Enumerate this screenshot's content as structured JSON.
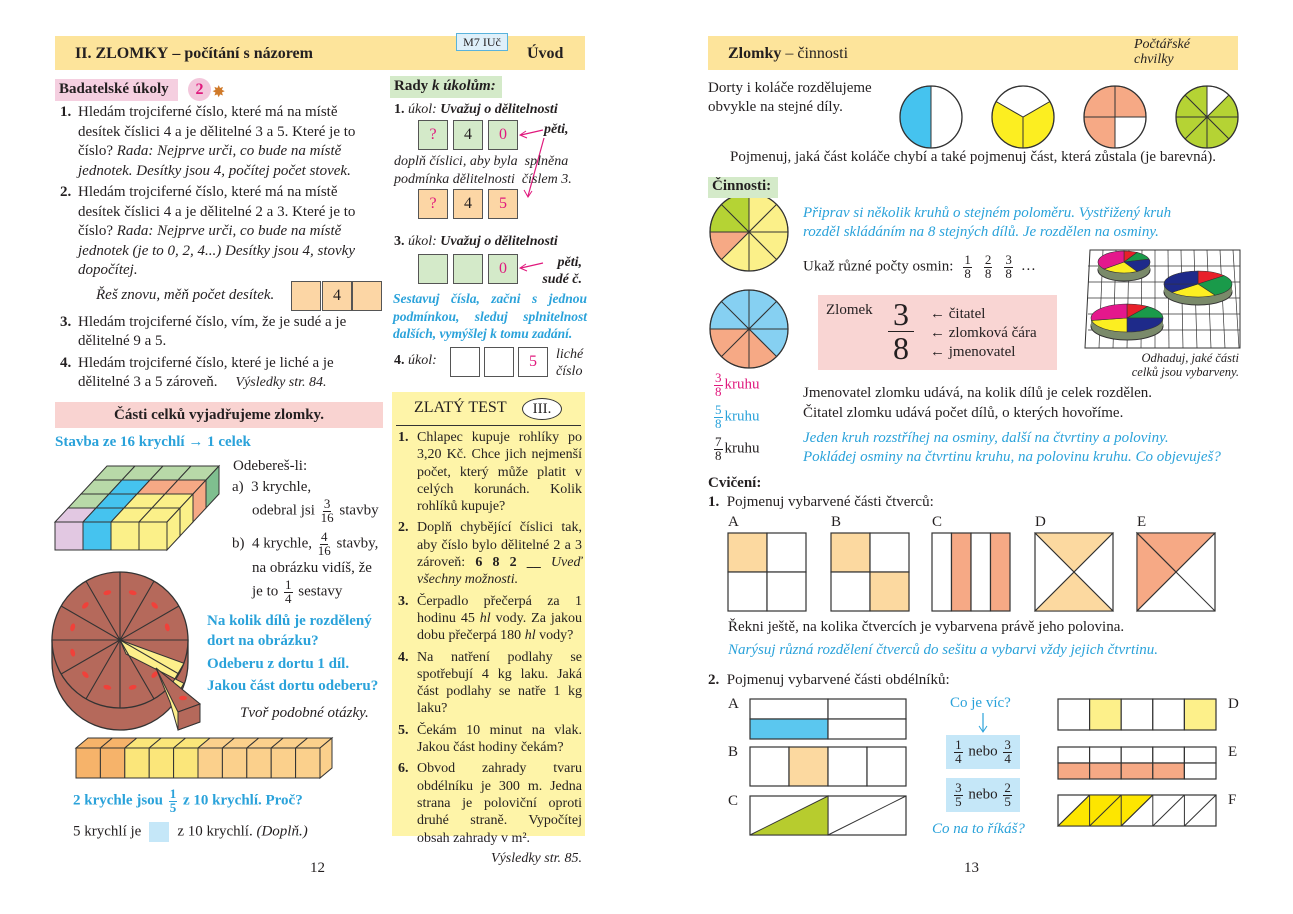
{
  "left_page": {
    "header": {
      "title_bold": "II. ZLOMKY",
      "title_rest": " – počítání s názorem",
      "badge": "M7 IUč",
      "section": "Úvod"
    },
    "research": {
      "label": "Badatelské úkoly",
      "level": "2",
      "tasks": [
        {
          "num": "1.",
          "text": "Hledám trojciferné číslo, které má na místě desítek číslici 4 a je dělitelné 3 a 5. Které je to číslo? ",
          "hint": "Rada: Nejprve urči, co bude na místě jednotek. Desítky jsou 4, počítej počet stovek."
        },
        {
          "num": "2.",
          "text": "Hledám trojciferné číslo, které má na místě desítek číslici 4 a je dělitelné 2 a 3. Které je to číslo? ",
          "hint": "Rada: Nejprve urči, co bude na místě jednotek (je to 0, 2, 4...) Desítky jsou 4, stovky dopočítej."
        },
        {
          "num": "3.",
          "text": "Hledám trojciferné číslo, vím, že je sudé a je dělitelné 9 a 5.",
          "hint": ""
        },
        {
          "num": "4.",
          "text": "Hledám trojciferné číslo, které je liché a je dělitelné 3 a 5 zároveň.",
          "hint": ""
        }
      ],
      "task2_retry": "Řeš znovu, měň počet desítek.",
      "digit_boxes": [
        "",
        "4",
        ""
      ],
      "results": "Výsledky str. 84."
    },
    "hints": {
      "title_bold": "Rady",
      "title_italic": " k úkolům:",
      "task1": {
        "num": "1.",
        "word": "úkol:",
        "text": "Uvažuj o dělitelnosti",
        "row1": [
          "?",
          "4",
          "0"
        ],
        "note": "pěti,",
        "explain_1": "doplň číslici, aby byla  splněna",
        "explain_2": "podmínka dělitelnosti  číslem 3.",
        "row2": [
          "?",
          "4",
          "5"
        ]
      },
      "task3": {
        "num": "3.",
        "word": "úkol:",
        "text": "Uvažuj o dělitelnosti",
        "row": [
          "",
          "",
          "0"
        ],
        "note_1": "pěti,",
        "note_2": "sudé č."
      },
      "advice": "Sestavuj čísla, začni s jednou podmínkou, sleduj splnitelnost dalších, vymýšlej k tomu zadání.",
      "task4": {
        "num": "4.",
        "word": "úkol:",
        "row": [
          "",
          "",
          "5"
        ],
        "note_1": "liché",
        "note_2": "číslo"
      }
    },
    "golden_test": {
      "title": "ZLATÝ TEST",
      "badge": "III.",
      "items": [
        {
          "num": "1.",
          "parts": [
            [
              "Chlapec kupuje rohlíky po 3,20 Kč. Chce jich nejmenší počet, který může platit v celých korunách. Kolik rohlíků kupuje?",
              ""
            ]
          ]
        },
        {
          "num": "2.",
          "parts": [
            [
              "Doplň chybějící číslici tak, aby číslo bylo dělitelné 2 a 3 zároveň:  ",
              ""
            ],
            [
              "6 8 2 __",
              "b"
            ],
            [
              " Uveď všechny možnosti.",
              "i"
            ]
          ]
        },
        {
          "num": "3.",
          "parts": [
            [
              "Čerpadlo přečerpá za 1 hodinu 45 ",
              ""
            ],
            [
              "hl",
              "i"
            ],
            [
              " vody. Za jakou dobu přečerpá 180 ",
              ""
            ],
            [
              "hl",
              "i"
            ],
            [
              " vody?",
              ""
            ]
          ]
        },
        {
          "num": "4.",
          "parts": [
            [
              "Na natření podlahy se spotřebují 4 kg laku. Jaká část podlahy se natře 1 kg laku?",
              ""
            ]
          ]
        },
        {
          "num": "5.",
          "parts": [
            [
              "Čekám 10 minut na vlak. Jakou část hodiny čekám?",
              ""
            ]
          ]
        },
        {
          "num": "6.",
          "parts": [
            [
              "Obvod zahrady tvaru obdélníku je 300 m. Jedna strana je poloviční oproti druhé straně. Vypočítej obsah zahrady v m².",
              " "
            ]
          ]
        }
      ],
      "results": "Výsledky str. 85."
    },
    "parts": {
      "heading": "Části celků vyjadřujeme zlomky.",
      "building": "Stavba ze 16 krychlí → 1 celek",
      "remove": "Odebereš-li:",
      "a_label": "a)",
      "a_1": "3 krychle,",
      "a_2": "odebral jsi",
      "a_num": "3",
      "a_den": "16",
      "a_3": "stavby",
      "b_label": "b)",
      "b_1": "4 krychle,",
      "b_num": "4",
      "b_den": "16",
      "b_2": "stavby,",
      "b_3": "na  obrázku vidíš, že",
      "b_4": "je to",
      "b_num2": "1",
      "b_den2": "4",
      "b_5": "sestavy",
      "cake_q1": "Na kolik dílů je rozdělený",
      "cake_q2": "dort na obrázku?",
      "cake_q3": "Odeberu z dortu 1 díl.",
      "cake_q4": "Jakou část dortu odeberu?",
      "create": "Tvoř podobné otázky.",
      "bar_1": "2 krychle jsou",
      "bar_num": "1",
      "bar_den": "5",
      "bar_2": "z 10 krychlí. Proč?",
      "fill_1": "5 krychlí je",
      "fill_2": "z 10 krychlí.",
      "fill_3": "(Doplň.)"
    },
    "page_number": "12"
  },
  "right_page": {
    "header": {
      "title_bold": "Zlomky",
      "title_rest": " – činnosti",
      "corner_1": "Počtářské",
      "corner_2": "chvilky"
    },
    "intro_1": "Dorty i koláče rozdělujeme",
    "intro_2": "obvykle na stejné díly.",
    "intro_question": "Pojmenuj, jaká část koláče chybí a také pojmenuj část, která zůstala (je barevná).",
    "activities": {
      "label": "Činnosti:",
      "prepare_1": "Připrav si několik kruhů o stejném poloměru. Vystřižený kruh",
      "prepare_2": "rozděl skládáním na 8 stejných dílů. Je rozdělen na osminy.",
      "show": "Ukaž různé počty osmin:",
      "eighths": [
        {
          "n": "1",
          "d": "8"
        },
        {
          "n": "2",
          "d": "8"
        },
        {
          "n": "3",
          "d": "8"
        }
      ],
      "ellipsis": "…",
      "fraction_box": {
        "label": "Zlomek",
        "num": "3",
        "den": "8",
        "numerator": "← čitatel",
        "bar": "← zlomková čára",
        "denominator": "← jmenovatel"
      },
      "circle_labels": [
        {
          "n": "3",
          "d": "8",
          "t": "kruhu",
          "color": "#e0197d"
        },
        {
          "n": "5",
          "d": "8",
          "t": "kruhu",
          "color": "#2aa2da"
        },
        {
          "n": "7",
          "d": "8",
          "t": "kruhu",
          "color": "#231f20"
        }
      ],
      "caption_1": "Odhaduj, jaké části",
      "caption_2": "celků jsou vybarveny.",
      "denominator_text": "Jmenovatel zlomku udává, na kolik dílů je celek rozdělen.",
      "numerator_text": "Čitatel zlomku udává počet dílů, o kterých hovoříme.",
      "cut_1": "Jeden kruh rozstříhej na osminy, další na čtvrtiny a poloviny.",
      "cut_2": "Pokládej osminy na čtvrtinu kruhu, na polovinu kruhu. Co objevuješ?"
    },
    "exercises": {
      "label": "Cvičení:",
      "ex1": {
        "num": "1.",
        "text": "Pojmenuj vybarvené části čtverců:",
        "labels": [
          "A",
          "B",
          "C",
          "D",
          "E"
        ],
        "followup": "Řekni ještě, na kolika čtvercích je vybarvena právě jeho polovina.",
        "draw": "Narýsuj různá rozdělení čtverců do sešitu a vybarvi vždy jejich čtvrtinu."
      },
      "ex2": {
        "num": "2.",
        "text": "Pojmenuj vybarvené části obdélníků:",
        "labels": [
          "A",
          "B",
          "C",
          "D",
          "E",
          "F"
        ],
        "which_more": "Co je víc?",
        "cmp1": {
          "n1": "1",
          "d1": "4",
          "word": "nebo",
          "n2": "3",
          "d2": "4"
        },
        "cmp2": {
          "n1": "3",
          "d1": "5",
          "word": "nebo",
          "n2": "2",
          "d2": "5"
        },
        "what_say": "Co na to říkáš?"
      }
    },
    "page_number": "13"
  }
}
